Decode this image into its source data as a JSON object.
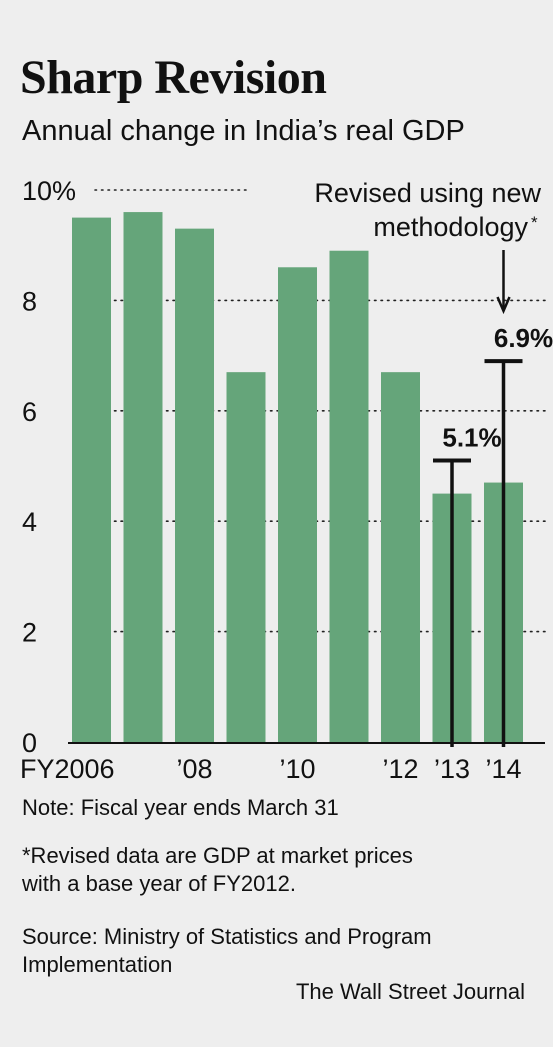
{
  "chart_data": {
    "type": "bar",
    "title": "Sharp Revision",
    "subtitle": "Annual change in India’s real GDP",
    "categories": [
      "FY2006",
      "",
      "’08",
      "",
      "’10",
      "",
      "’12",
      "’13",
      "’14"
    ],
    "values": [
      9.5,
      9.6,
      9.3,
      6.7,
      8.6,
      8.9,
      6.7,
      4.5,
      4.7
    ],
    "ylim": [
      0,
      10
    ],
    "yticks": [
      0,
      2,
      4,
      6,
      8,
      10
    ],
    "ytick_labels": [
      "0",
      "2",
      "4",
      "6",
      "8",
      "10%"
    ],
    "grid": "dotted",
    "bar_color": "#65a57a",
    "revised": {
      "label": "Revised using new methodology*",
      "points": [
        {
          "category": "’13",
          "value": 5.1,
          "label": "5.1%"
        },
        {
          "category": "’14",
          "value": 6.9,
          "label": "6.9%"
        }
      ]
    }
  },
  "notes": {
    "fiscal": "Note: Fiscal year ends March 31",
    "revised_line1": "*Revised data are GDP at market prices",
    "revised_line2": "with a base year of FY2012.",
    "source_line1": "Source: Ministry of Statistics and Program",
    "source_line2": "Implementation"
  },
  "credit": "The Wall Street Journal"
}
